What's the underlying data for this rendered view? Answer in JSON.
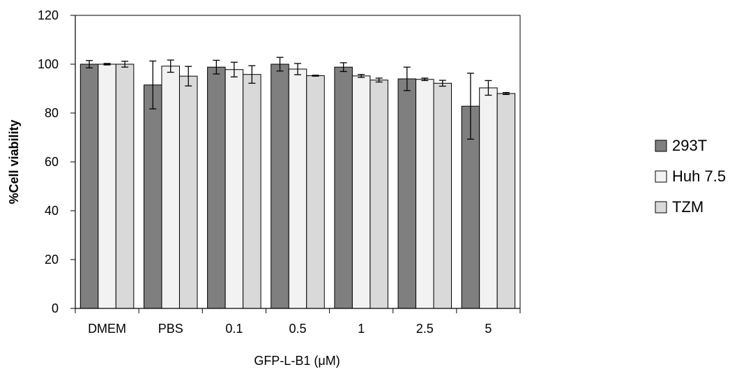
{
  "chart_data": {
    "type": "bar",
    "title": "",
    "xlabel": "GFP-L-B1 (μM)",
    "ylabel": "%Cell viability",
    "categories": [
      "DMEM",
      "PBS",
      "0.1",
      "0.5",
      "1",
      "2.5",
      "5"
    ],
    "ylim": [
      0,
      120
    ],
    "yticks": [
      0,
      20,
      40,
      60,
      80,
      100,
      120
    ],
    "grid": false,
    "legend_position": "right",
    "series": [
      {
        "name": "293T",
        "color": "#7f7f7f",
        "values": [
          100,
          91.5,
          98.8,
          100,
          98.8,
          94,
          82.8
        ],
        "errors": [
          1.5,
          9.8,
          2.8,
          2.8,
          1.8,
          4.8,
          13.5
        ]
      },
      {
        "name": "Huh 7.5",
        "color": "#f2f2f2",
        "values": [
          100,
          99.2,
          97.8,
          98,
          95.2,
          93.8,
          90.3
        ],
        "errors": [
          0.3,
          2.5,
          3,
          2.3,
          0.6,
          0.5,
          3
        ]
      },
      {
        "name": "TZM",
        "color": "#d9d9d9",
        "values": [
          100,
          95.1,
          95.8,
          95.3,
          93.5,
          92.2,
          88
        ],
        "errors": [
          1.2,
          4,
          3.6,
          0.2,
          0.8,
          1.2,
          0.4
        ]
      }
    ]
  }
}
